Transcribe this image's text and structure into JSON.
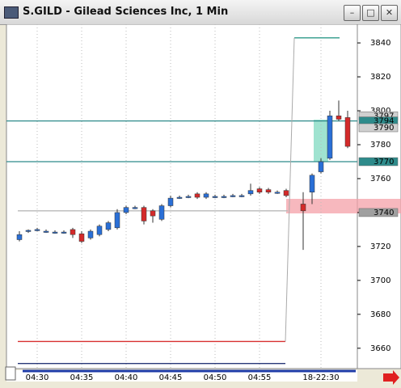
{
  "window": {
    "title": "S.GILD - Gilead Sciences Inc, 1 Min"
  },
  "chart_data": {
    "type": "candlestick",
    "categories": [
      null,
      null,
      "04:30",
      null,
      null,
      null,
      null,
      "04:35",
      null,
      null,
      null,
      null,
      "04:40",
      null,
      null,
      null,
      null,
      "04:45",
      null,
      null,
      null,
      null,
      "04:50",
      null,
      null,
      null,
      null,
      "04:55",
      null,
      null,
      null,
      null,
      null,
      "18-22:30",
      null,
      null,
      null
    ],
    "open": [
      3724,
      3729,
      3730,
      3729,
      3728.5,
      3728.5,
      3730,
      3727.5,
      3725,
      3727,
      3730,
      3731,
      3740,
      3743,
      3743,
      3741,
      3736,
      3744,
      3749,
      3749.5,
      3751,
      3749,
      3749.5,
      3749.5,
      3750,
      3750,
      3751,
      3754,
      3753.5,
      3752,
      3753,
      3745,
      3752,
      3764,
      3772,
      3797,
      3796
    ],
    "high": [
      3729,
      3730,
      3731,
      3730,
      3729.5,
      3729.5,
      3731,
      3729,
      3730,
      3733,
      3735,
      3742,
      3744,
      3744,
      3744,
      3742,
      3745,
      3750,
      3750,
      3750.5,
      3752,
      3752,
      3750.5,
      3750.5,
      3751,
      3751,
      3757,
      3755,
      3754.5,
      3753,
      3754,
      3752,
      3763,
      3772,
      3800,
      3806,
      3800
    ],
    "low": [
      3723,
      3728,
      3729,
      3728,
      3727.5,
      3727.5,
      3725,
      3722,
      3724,
      3726,
      3729,
      3730,
      3739,
      3742,
      3733,
      3734,
      3735,
      3743,
      3748,
      3748.5,
      3748,
      3748,
      3748.5,
      3748.5,
      3749,
      3749,
      3750,
      3751,
      3751,
      3751,
      3749,
      3718,
      3745,
      3763,
      3771,
      3794,
      3778
    ],
    "close": [
      3727,
      3729.5,
      3730,
      3729,
      3728.5,
      3728.5,
      3727,
      3723,
      3729,
      3732,
      3734,
      3740,
      3743,
      3743,
      3735,
      3738,
      3744,
      3748.5,
      3749,
      3749.5,
      3749,
      3751,
      3749.5,
      3749.5,
      3750,
      3750,
      3753,
      3752,
      3752,
      3752,
      3750,
      3741,
      3762,
      3770,
      3797,
      3795,
      3779
    ],
    "up_color": "#2a6fd6",
    "down_color": "#d42a2a",
    "ylim": [
      3648,
      3851
    ],
    "yticks": [
      3660,
      3680,
      3700,
      3720,
      3740,
      3760,
      3780,
      3800,
      3820,
      3840
    ],
    "lines": [
      {
        "value": 3843,
        "color": "#2e9a8a"
      },
      {
        "value": 3794,
        "color": "#2e8b8b"
      },
      {
        "value": 3770,
        "color": "#2e8b8b"
      },
      {
        "value": 3741,
        "color": "#b8b8b8"
      },
      {
        "value": 3664,
        "color": "#d83030"
      },
      {
        "value": 3651,
        "color": "#283878"
      }
    ],
    "price_tags": [
      {
        "value": 3797,
        "color": "#d0d0d0"
      },
      {
        "value": 3794,
        "color": "#2e8b8b"
      },
      {
        "value": 3790,
        "color": "#d0d0d0"
      },
      {
        "value": 3770,
        "color": "#2e8b8b"
      },
      {
        "value": 3740,
        "color": "#a0a0a0"
      }
    ]
  }
}
